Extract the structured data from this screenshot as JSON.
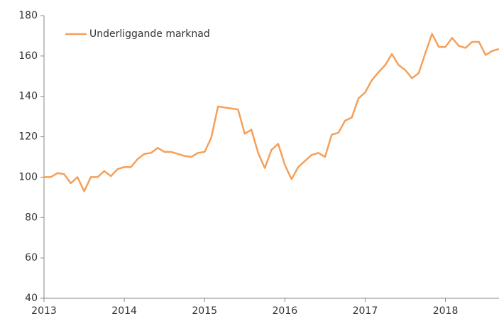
{
  "chart_data": {
    "type": "line",
    "x": [
      2013,
      2013.083,
      2013.167,
      2013.25,
      2013.333,
      2013.417,
      2013.5,
      2013.583,
      2013.667,
      2013.75,
      2013.833,
      2013.917,
      2014,
      2014.083,
      2014.167,
      2014.25,
      2014.333,
      2014.417,
      2014.5,
      2014.583,
      2014.667,
      2014.75,
      2014.833,
      2014.917,
      2015,
      2015.083,
      2015.167,
      2015.25,
      2015.333,
      2015.417,
      2015.5,
      2015.583,
      2015.667,
      2015.75,
      2015.833,
      2015.917,
      2016,
      2016.083,
      2016.167,
      2016.25,
      2016.333,
      2016.417,
      2016.5,
      2016.583,
      2016.667,
      2016.75,
      2016.833,
      2016.917,
      2017,
      2017.083,
      2017.167,
      2017.25,
      2017.333,
      2017.417,
      2017.5,
      2017.583,
      2017.667,
      2017.75,
      2017.833,
      2017.917,
      2018,
      2018.083,
      2018.167,
      2018.25,
      2018.333,
      2018.417,
      2018.5,
      2018.583,
      2018.667
    ],
    "series": [
      {
        "name": "Underliggande marknad",
        "color": "#f5a05a",
        "values": [
          100,
          100,
          102,
          101.5,
          97,
          100,
          93,
          100,
          100,
          103,
          100.5,
          104,
          105,
          105,
          109,
          111.5,
          112,
          114.5,
          112.5,
          112.5,
          111.5,
          110.5,
          110,
          112,
          112.5,
          119.5,
          135,
          134.5,
          134,
          133.5,
          121.5,
          123.5,
          112,
          104.5,
          113.5,
          116.5,
          106,
          99,
          105,
          108,
          111,
          112,
          110,
          121,
          122,
          128,
          129.5,
          139,
          142,
          148,
          152,
          155.5,
          161,
          155.5,
          153,
          149,
          151.5,
          161.5,
          171,
          164.5,
          164.5,
          169,
          165,
          164,
          167,
          167,
          160.5,
          162.5,
          163.5
        ]
      }
    ],
    "xlim": [
      2013,
      2018.667
    ],
    "xticks": [
      2013,
      2014,
      2015,
      2016,
      2017,
      2018
    ],
    "ylim": [
      40,
      180
    ],
    "yticks": [
      40,
      60,
      80,
      100,
      120,
      140,
      160,
      180
    ],
    "grid": false,
    "legend": "top-left"
  }
}
